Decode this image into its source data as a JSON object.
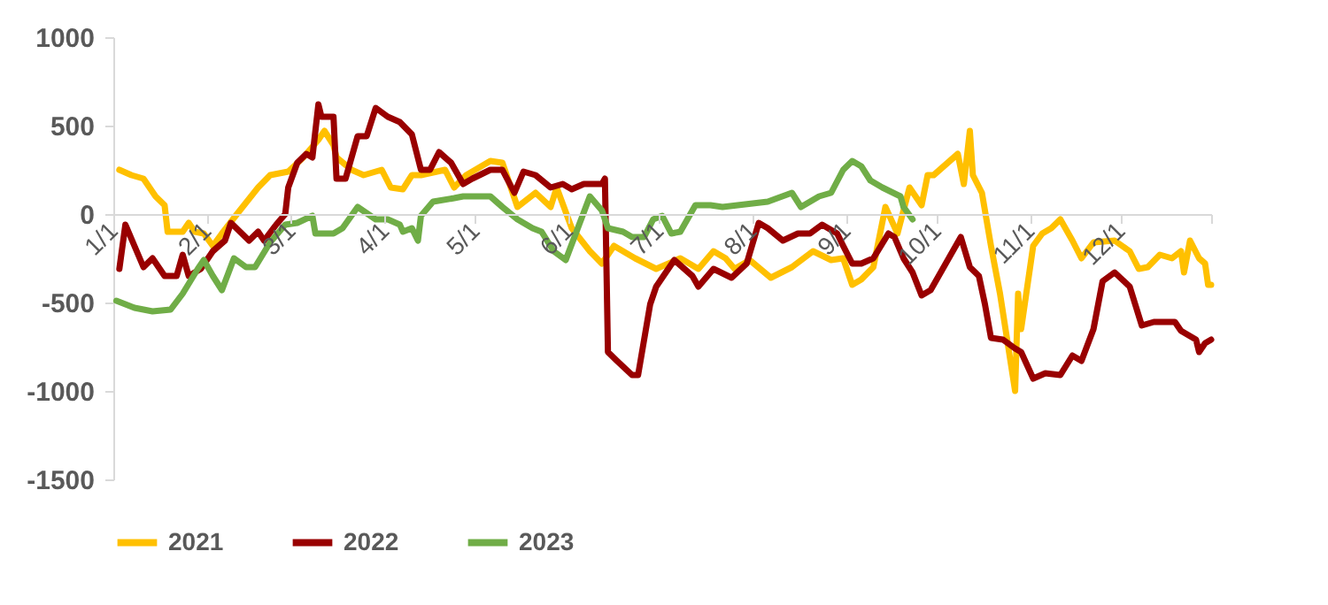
{
  "chart_data": {
    "type": "line",
    "legend": "bottom",
    "line_style": "solid",
    "xlim": [
      "--01-01",
      "--12-31"
    ],
    "xticks": [
      {
        "value": "--01-01",
        "label": "1/1"
      },
      {
        "value": "--02-01",
        "label": "2/1"
      },
      {
        "value": "--03-01",
        "label": "3/1"
      },
      {
        "value": "--04-01",
        "label": "4/1"
      },
      {
        "value": "--05-01",
        "label": "5/1"
      },
      {
        "value": "--06-01",
        "label": "6/1"
      },
      {
        "value": "--07-01",
        "label": "7/1"
      },
      {
        "value": "--08-01",
        "label": "8/1"
      },
      {
        "value": "--09-01",
        "label": "9/1"
      },
      {
        "value": "--10-01",
        "label": "10/1"
      },
      {
        "value": "--11-01",
        "label": "11/1"
      },
      {
        "value": "--12-01",
        "label": "12/1"
      },
      {
        "value": "--12-31",
        "label": null
      }
    ],
    "ylim": [
      -1500,
      1000
    ],
    "yticks": [
      -1500,
      -1000,
      -500,
      0,
      500,
      1000
    ],
    "series": [
      {
        "name": "2021",
        "color": "#ffc000",
        "x": [
          "--01-03",
          "--01-07",
          "--01-11",
          "--01-15",
          "--01-18",
          "--01-19",
          "--01-24",
          "--01-26",
          "--01-28",
          "--01-31",
          "--02-03",
          "--02-06",
          "--02-11",
          "--02-18",
          "--02-22",
          "--02-28",
          "--03-05",
          "--03-10",
          "--03-12",
          "--03-15",
          "--03-16",
          "--03-21",
          "--03-25",
          "--03-31",
          "--04-03",
          "--04-07",
          "--04-10",
          "--04-13",
          "--04-21",
          "--04-24",
          "--04-28",
          "--05-06",
          "--05-10",
          "--05-15",
          "--05-21",
          "--05-26",
          "--05-28",
          "--06-02",
          "--06-08",
          "--06-12",
          "--06-16",
          "--06-23",
          "--06-30",
          "--07-08",
          "--07-14",
          "--07-19",
          "--07-23",
          "--07-26",
          "--07-31",
          "--08-07",
          "--08-14",
          "--08-21",
          "--08-27",
          "--08-31",
          "--09-03",
          "--09-06",
          "--09-10",
          "--09-14",
          "--09-18",
          "--09-22",
          "--09-26",
          "--09-28",
          "--09-30",
          "--10-08",
          "--10-10",
          "--10-12",
          "--10-13",
          "--10-16",
          "--10-19",
          "--10-22",
          "--10-25",
          "--10-27",
          "--10-28",
          "--10-29",
          "--11-02",
          "--11-05",
          "--11-08",
          "--11-11",
          "--11-15",
          "--11-18",
          "--11-22",
          "--11-29",
          "--12-04",
          "--12-07",
          "--12-10",
          "--12-14",
          "--12-18",
          "--12-21",
          "--12-22",
          "--12-24",
          "--12-27",
          "--12-29",
          "--12-30",
          "--12-31"
        ],
        "values": [
          250,
          220,
          200,
          100,
          50,
          -100,
          -100,
          -50,
          -100,
          -110,
          -180,
          -110,
          0,
          150,
          220,
          240,
          320,
          420,
          470,
          390,
          320,
          250,
          220,
          250,
          150,
          140,
          220,
          220,
          250,
          150,
          220,
          300,
          290,
          40,
          120,
          40,
          150,
          -80,
          -210,
          -280,
          -180,
          -250,
          -310,
          -250,
          -310,
          -210,
          -250,
          -310,
          -260,
          -360,
          -300,
          -210,
          -260,
          -250,
          -400,
          -370,
          -300,
          40,
          -110,
          150,
          50,
          220,
          220,
          340,
          170,
          470,
          220,
          120,
          -180,
          -450,
          -780,
          -1000,
          -450,
          -650,
          -180,
          -110,
          -80,
          -30,
          -150,
          -250,
          -160,
          -150,
          -210,
          -310,
          -300,
          -230,
          -250,
          -210,
          -330,
          -150,
          -250,
          -280,
          -400,
          -400
        ]
      },
      {
        "name": "2022",
        "color": "#990000",
        "x": [
          "--01-03",
          "--01-05",
          "--01-08",
          "--01-11",
          "--01-14",
          "--01-16",
          "--01-18",
          "--01-22",
          "--01-24",
          "--01-26",
          "--01-30",
          "--02-03",
          "--02-07",
          "--02-09",
          "--02-12",
          "--02-15",
          "--02-18",
          "--02-20",
          "--02-24",
          "--02-27",
          "--02-28",
          "--03-03",
          "--03-06",
          "--03-08",
          "--03-10",
          "--03-11",
          "--03-15",
          "--03-16",
          "--03-19",
          "--03-23",
          "--03-26",
          "--03-29",
          "--04-02",
          "--04-06",
          "--04-10",
          "--04-13",
          "--04-16",
          "--04-19",
          "--04-23",
          "--04-27",
          "--04-30",
          "--05-06",
          "--05-10",
          "--05-14",
          "--05-17",
          "--05-21",
          "--05-26",
          "--05-30",
          "--06-02",
          "--06-06",
          "--06-12",
          "--06-13",
          "--06-14",
          "--06-17",
          "--06-22",
          "--06-24",
          "--06-28",
          "--06-30",
          "--07-06",
          "--07-12",
          "--07-14",
          "--07-19",
          "--07-25",
          "--07-30",
          "--08-03",
          "--08-06",
          "--08-11",
          "--08-16",
          "--08-20",
          "--08-24",
          "--08-29",
          "--08-31",
          "--09-03",
          "--09-06",
          "--09-10",
          "--09-15",
          "--09-17",
          "--09-20",
          "--09-23",
          "--09-26",
          "--09-29",
          "--10-09",
          "--10-12",
          "--10-15",
          "--10-17",
          "--10-19",
          "--10-23",
          "--10-27",
          "--10-29",
          "--11-02",
          "--11-06",
          "--11-11",
          "--11-15",
          "--11-18",
          "--11-22",
          "--11-25",
          "--11-29",
          "--12-04",
          "--12-08",
          "--12-12",
          "--12-19",
          "--12-21",
          "--12-26",
          "--12-27",
          "--12-29",
          "--12-31"
        ],
        "values": [
          -310,
          -60,
          -180,
          -300,
          -250,
          -300,
          -350,
          -350,
          -230,
          -350,
          -310,
          -210,
          -150,
          -50,
          -100,
          -150,
          -100,
          -150,
          -60,
          0,
          150,
          290,
          340,
          320,
          620,
          550,
          550,
          200,
          200,
          440,
          440,
          600,
          550,
          520,
          450,
          250,
          250,
          350,
          290,
          170,
          200,
          250,
          250,
          120,
          240,
          220,
          150,
          170,
          140,
          170,
          170,
          200,
          -780,
          -830,
          -910,
          -910,
          -510,
          -410,
          -260,
          -350,
          -410,
          -310,
          -360,
          -280,
          -50,
          -80,
          -150,
          -110,
          -110,
          -60,
          -110,
          -180,
          -280,
          -280,
          -250,
          -110,
          -130,
          -250,
          -330,
          -460,
          -430,
          -130,
          -300,
          -350,
          -510,
          -700,
          -710,
          -760,
          -780,
          -930,
          -900,
          -910,
          -800,
          -830,
          -650,
          -380,
          -330,
          -410,
          -630,
          -610,
          -610,
          -660,
          -710,
          -780,
          -730,
          -710
        ]
      },
      {
        "name": "2023",
        "color": "#70ad47",
        "x": [
          "--01-02",
          "--01-08",
          "--01-14",
          "--01-20",
          "--01-24",
          "--01-29",
          "--01-31",
          "--02-03",
          "--02-06",
          "--02-10",
          "--02-14",
          "--02-17",
          "--02-22",
          "--02-27",
          "--03-03",
          "--03-08",
          "--03-09",
          "--03-15",
          "--03-18",
          "--03-23",
          "--03-29",
          "--04-02",
          "--04-06",
          "--04-07",
          "--04-10",
          "--04-12",
          "--04-13",
          "--04-17",
          "--04-24",
          "--04-27",
          "--05-06",
          "--05-10",
          "--05-15",
          "--05-20",
          "--05-23",
          "--05-27",
          "--05-31",
          "--06-08",
          "--06-12",
          "--06-14",
          "--06-19",
          "--06-22",
          "--06-26",
          "--06-29",
          "--07-02",
          "--07-05",
          "--07-08",
          "--07-13",
          "--07-18",
          "--07-22",
          "--07-27",
          "--08-06",
          "--08-14",
          "--08-17",
          "--08-23",
          "--08-27",
          "--08-31",
          "--09-03",
          "--09-06",
          "--09-09",
          "--09-13",
          "--09-19",
          "--09-20",
          "--09-23"
        ],
        "values": [
          -490,
          -530,
          -550,
          -540,
          -450,
          -310,
          -260,
          -350,
          -430,
          -250,
          -300,
          -300,
          -160,
          -60,
          -50,
          -10,
          -110,
          -110,
          -80,
          40,
          -30,
          -30,
          -60,
          -100,
          -80,
          -150,
          -10,
          70,
          90,
          100,
          100,
          40,
          -30,
          -80,
          -100,
          -210,
          -260,
          100,
          20,
          -80,
          -100,
          -130,
          -130,
          -30,
          -10,
          -110,
          -100,
          50,
          50,
          40,
          50,
          70,
          120,
          40,
          100,
          120,
          250,
          300,
          270,
          190,
          150,
          100,
          40,
          -30
        ]
      }
    ]
  }
}
